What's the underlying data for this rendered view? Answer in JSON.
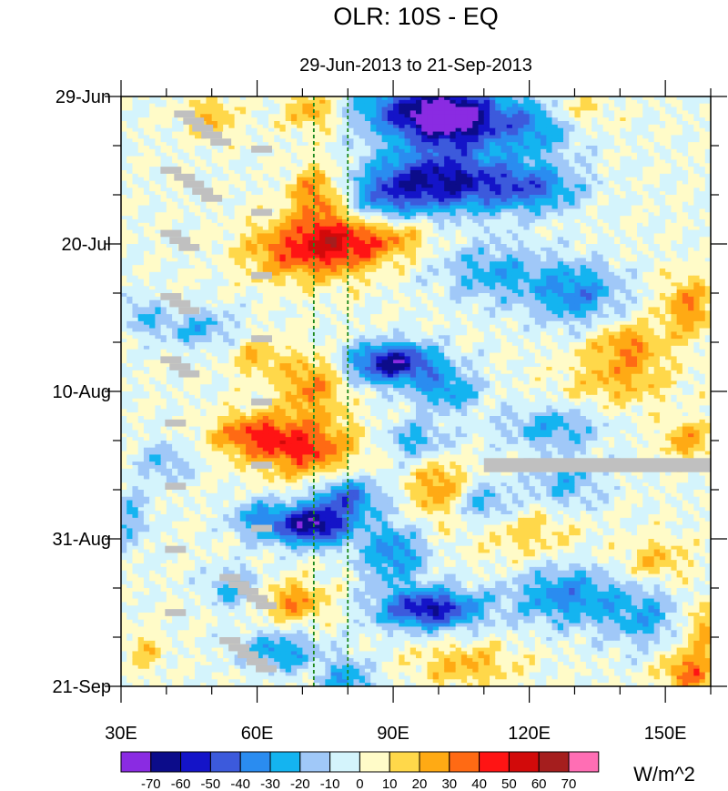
{
  "chart_data": {
    "type": "heatmap",
    "title": "OLR: 10S - EQ",
    "subtitle": "29-Jun-2013 to 21-Sep-2013",
    "x_axis": {
      "range": [
        30,
        160
      ],
      "units": "degrees east longitude",
      "ticks": [
        {
          "value": 30,
          "label": "30E"
        },
        {
          "value": 60,
          "label": "60E"
        },
        {
          "value": 90,
          "label": "90E"
        },
        {
          "value": 120,
          "label": "120E"
        },
        {
          "value": 150,
          "label": "150E"
        }
      ],
      "minor_ticks": [
        40,
        50,
        70,
        80,
        100,
        110,
        130,
        140,
        160
      ]
    },
    "y_axis": {
      "range_days": [
        0,
        84
      ],
      "orientation": "time increasing downward",
      "ticks": [
        {
          "value": 0,
          "label": "29-Jun"
        },
        {
          "value": 21,
          "label": "20-Jul"
        },
        {
          "value": 42,
          "label": "10-Aug"
        },
        {
          "value": 63,
          "label": "31-Aug"
        },
        {
          "value": 84,
          "label": "21-Sep"
        }
      ]
    },
    "reference_lines": [
      {
        "orientation": "vertical",
        "x": 72.5,
        "style": "dashed",
        "color": "#1f8a1f"
      },
      {
        "orientation": "vertical",
        "x": 80,
        "style": "dashed",
        "color": "#1f8a1f"
      }
    ],
    "colorbar": {
      "units": "W/m^2",
      "labels": [
        "-70",
        "-60",
        "-50",
        "-40",
        "-30",
        "-20",
        "-10",
        "0",
        "10",
        "20",
        "30",
        "40",
        "50",
        "60",
        "70"
      ],
      "colors": [
        "#8a2be2",
        "#0c0c8a",
        "#1414c8",
        "#3c5adc",
        "#2a8cf0",
        "#14b4f0",
        "#a0c8f8",
        "#d4f4fc",
        "#fffbc8",
        "#ffd84a",
        "#ffaa14",
        "#ff6a14",
        "#ff1414",
        "#d20a0a",
        "#a51e1e",
        "#ff6eb4"
      ],
      "bins": [
        [
          -999,
          -70
        ],
        [
          -70,
          -60
        ],
        [
          -60,
          -50
        ],
        [
          -50,
          -40
        ],
        [
          -40,
          -30
        ],
        [
          -30,
          -20
        ],
        [
          -20,
          -10
        ],
        [
          -10,
          0
        ],
        [
          0,
          10
        ],
        [
          10,
          20
        ],
        [
          20,
          30
        ],
        [
          30,
          40
        ],
        [
          40,
          50
        ],
        [
          50,
          60
        ],
        [
          60,
          70
        ],
        [
          70,
          999
        ]
      ]
    },
    "features": [
      {
        "x": 103,
        "t": 3,
        "amp": -70,
        "sx": 7,
        "st": 3
      },
      {
        "x": 92,
        "t": 2,
        "amp": -40,
        "sx": 8,
        "st": 3
      },
      {
        "x": 120,
        "t": 4,
        "amp": -35,
        "sx": 8,
        "st": 3
      },
      {
        "x": 72,
        "t": 2,
        "amp": 25,
        "sx": 4,
        "st": 2
      },
      {
        "x": 50,
        "t": 3,
        "amp": 20,
        "sx": 4,
        "st": 2
      },
      {
        "x": 130,
        "t": 2,
        "amp": 20,
        "sx": 5,
        "st": 2
      },
      {
        "x": 100,
        "t": 12,
        "amp": -60,
        "sx": 10,
        "st": 3
      },
      {
        "x": 120,
        "t": 13,
        "amp": -38,
        "sx": 8,
        "st": 2.5
      },
      {
        "x": 88,
        "t": 15,
        "amp": -25,
        "sx": 6,
        "st": 3
      },
      {
        "x": 73,
        "t": 14,
        "amp": 30,
        "sx": 4,
        "st": 3
      },
      {
        "x": 78,
        "t": 21,
        "amp": 45,
        "sx": 7,
        "st": 3
      },
      {
        "x": 66,
        "t": 22,
        "amp": 28,
        "sx": 7,
        "st": 3
      },
      {
        "x": 90,
        "t": 20,
        "amp": 25,
        "sx": 6,
        "st": 2
      },
      {
        "x": 112,
        "t": 25,
        "amp": -25,
        "sx": 8,
        "st": 3
      },
      {
        "x": 130,
        "t": 28,
        "amp": -35,
        "sx": 7,
        "st": 3
      },
      {
        "x": 155,
        "t": 30,
        "amp": 30,
        "sx": 4,
        "st": 3
      },
      {
        "x": 142,
        "t": 35,
        "amp": 25,
        "sx": 5,
        "st": 2
      },
      {
        "x": 47,
        "t": 33,
        "amp": -22,
        "sx": 6,
        "st": 2
      },
      {
        "x": 35,
        "t": 31,
        "amp": -18,
        "sx": 3,
        "st": 2
      },
      {
        "x": 90,
        "t": 38,
        "amp": -65,
        "sx": 7,
        "st": 2
      },
      {
        "x": 102,
        "t": 42,
        "amp": -30,
        "sx": 5,
        "st": 2
      },
      {
        "x": 72,
        "t": 41,
        "amp": 30,
        "sx": 5,
        "st": 3
      },
      {
        "x": 60,
        "t": 37,
        "amp": 20,
        "sx": 4,
        "st": 2
      },
      {
        "x": 140,
        "t": 40,
        "amp": 22,
        "sx": 8,
        "st": 3
      },
      {
        "x": 70,
        "t": 50,
        "amp": 42,
        "sx": 8,
        "st": 3
      },
      {
        "x": 58,
        "t": 48,
        "amp": 30,
        "sx": 6,
        "st": 2
      },
      {
        "x": 95,
        "t": 49,
        "amp": -25,
        "sx": 5,
        "st": 2
      },
      {
        "x": 125,
        "t": 47,
        "amp": -25,
        "sx": 8,
        "st": 2
      },
      {
        "x": 155,
        "t": 49,
        "amp": 25,
        "sx": 4,
        "st": 2
      },
      {
        "x": 40,
        "t": 52,
        "amp": -20,
        "sx": 4,
        "st": 2
      },
      {
        "x": 100,
        "t": 56,
        "amp": 30,
        "sx": 4,
        "st": 3
      },
      {
        "x": 128,
        "t": 55,
        "amp": -22,
        "sx": 6,
        "st": 3
      },
      {
        "x": 110,
        "t": 58,
        "amp": -25,
        "sx": 5,
        "st": 2
      },
      {
        "x": 72,
        "t": 61,
        "amp": -70,
        "sx": 6,
        "st": 2
      },
      {
        "x": 80,
        "t": 57,
        "amp": -40,
        "sx": 5,
        "st": 2
      },
      {
        "x": 60,
        "t": 60,
        "amp": -25,
        "sx": 4,
        "st": 2
      },
      {
        "x": 32,
        "t": 60,
        "amp": -20,
        "sx": 3,
        "st": 3
      },
      {
        "x": 90,
        "t": 65,
        "amp": -35,
        "sx": 5,
        "st": 3
      },
      {
        "x": 120,
        "t": 62,
        "amp": 15,
        "sx": 8,
        "st": 3
      },
      {
        "x": 148,
        "t": 66,
        "amp": 20,
        "sx": 5,
        "st": 2
      },
      {
        "x": 98,
        "t": 73,
        "amp": -60,
        "sx": 8,
        "st": 2
      },
      {
        "x": 128,
        "t": 71,
        "amp": -35,
        "sx": 8,
        "st": 3
      },
      {
        "x": 68,
        "t": 72,
        "amp": 30,
        "sx": 5,
        "st": 2
      },
      {
        "x": 55,
        "t": 70,
        "amp": -25,
        "sx": 4,
        "st": 2
      },
      {
        "x": 145,
        "t": 74,
        "amp": -25,
        "sx": 6,
        "st": 3
      },
      {
        "x": 158,
        "t": 76,
        "amp": 22,
        "sx": 3,
        "st": 3
      },
      {
        "x": 65,
        "t": 79,
        "amp": -30,
        "sx": 6,
        "st": 2
      },
      {
        "x": 80,
        "t": 83,
        "amp": -30,
        "sx": 4,
        "st": 2
      },
      {
        "x": 106,
        "t": 81,
        "amp": 22,
        "sx": 8,
        "st": 2
      },
      {
        "x": 155,
        "t": 82,
        "amp": 35,
        "sx": 4,
        "st": 2
      },
      {
        "x": 35,
        "t": 79,
        "amp": 15,
        "sx": 3,
        "st": 2
      }
    ],
    "missing_data": {
      "color": "#c0c0c0",
      "bands": [
        {
          "x0": 110,
          "x1": 160,
          "t0": 51.5,
          "t1": 53.5
        }
      ],
      "cells": [
        [
          44,
          2.5
        ],
        [
          46,
          3.5
        ],
        [
          48,
          4.5
        ],
        [
          50,
          5.5
        ],
        [
          52,
          6.5
        ],
        [
          41,
          10.5
        ],
        [
          44,
          11.5
        ],
        [
          46,
          12.5
        ],
        [
          48,
          13.5
        ],
        [
          50,
          14.5
        ],
        [
          41,
          19.5
        ],
        [
          43,
          20.5
        ],
        [
          45,
          21.5
        ],
        [
          41,
          28.5
        ],
        [
          43,
          29.5
        ],
        [
          45,
          30.5
        ],
        [
          41,
          37.5
        ],
        [
          43,
          38.5
        ],
        [
          45,
          39.5
        ],
        [
          42,
          46.5
        ],
        [
          42,
          55.5
        ],
        [
          42,
          64.5
        ],
        [
          42,
          73.5
        ],
        [
          61,
          7.5
        ],
        [
          61,
          16.5
        ],
        [
          61,
          25.5
        ],
        [
          61,
          34.5
        ],
        [
          61,
          43.5
        ],
        [
          61,
          52.5
        ],
        [
          61,
          61.5
        ],
        [
          54,
          68.5
        ],
        [
          56,
          69.5
        ],
        [
          58,
          70.5
        ],
        [
          60,
          71.5
        ],
        [
          62,
          72.5
        ],
        [
          54,
          77.5
        ],
        [
          56,
          78.5
        ],
        [
          58,
          79.5
        ],
        [
          60,
          80.5
        ],
        [
          62,
          81.5
        ]
      ]
    }
  }
}
